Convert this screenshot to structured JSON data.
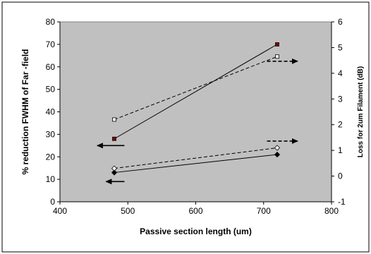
{
  "chart_data": {
    "type": "line",
    "xlabel": "Passive section length (um)",
    "ylabel": "% reduction FWHM of Far -field",
    "y2label": "Loss for 2um Filament (dB)",
    "xlim": [
      400,
      800
    ],
    "ylim": [
      0,
      80
    ],
    "y2lim": [
      -1,
      6
    ],
    "x_ticks": [
      "400",
      "500",
      "600",
      "700",
      "800"
    ],
    "y_ticks": [
      "0",
      "10",
      "20",
      "30",
      "40",
      "50",
      "60",
      "70",
      "80"
    ],
    "y2_ticks": [
      "-1",
      "0",
      "1",
      "2",
      "3",
      "4",
      "5",
      "6"
    ],
    "grid": false,
    "legend": "none",
    "plot_background": "#c0c0c0",
    "series": [
      {
        "axis": "left",
        "style": "solid",
        "marker": "square-filled",
        "color": "#000000",
        "marker_color": "#800000",
        "x": [
          480,
          720
        ],
        "y": [
          28,
          70
        ]
      },
      {
        "axis": "right",
        "style": "dashed",
        "marker": "square-open",
        "color": "#000000",
        "x": [
          480,
          720
        ],
        "y": [
          2.2,
          4.65
        ]
      },
      {
        "axis": "left",
        "style": "solid",
        "marker": "diamond-filled",
        "color": "#000000",
        "x": [
          480,
          720
        ],
        "y": [
          13,
          21
        ]
      },
      {
        "axis": "right",
        "style": "dashed",
        "marker": "diamond-open",
        "color": "#000000",
        "x": [
          480,
          720
        ],
        "y": [
          0.3,
          1.1
        ]
      }
    ],
    "annotations": [
      {
        "shape": "arrow-left",
        "style": "solid",
        "x_from": 455,
        "x_to": 495,
        "y": 25,
        "axis": "left"
      },
      {
        "shape": "arrow-left",
        "style": "solid",
        "x_from": 468,
        "x_to": 495,
        "y": 9,
        "axis": "left"
      },
      {
        "shape": "arrow-right",
        "style": "dashed",
        "x_from": 705,
        "x_to": 750,
        "y": 62.5,
        "axis": "left"
      },
      {
        "shape": "arrow-right",
        "style": "dashed",
        "x_from": 705,
        "x_to": 750,
        "y": 27,
        "axis": "left"
      }
    ]
  }
}
